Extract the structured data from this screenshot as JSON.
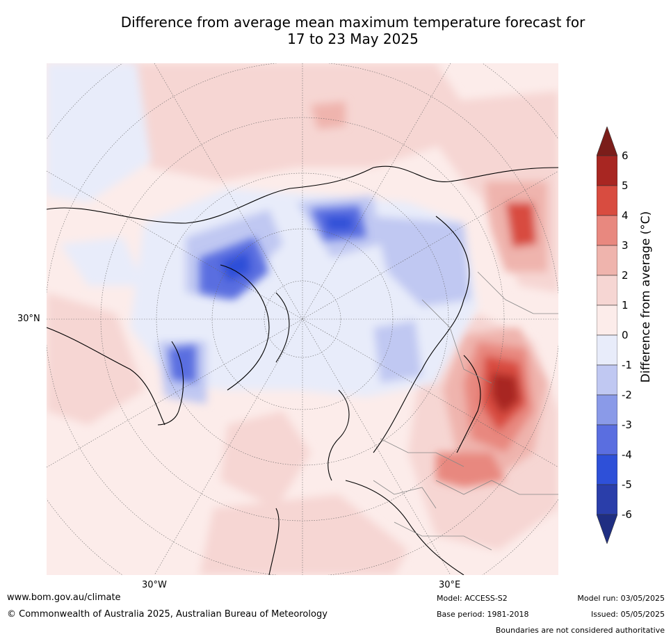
{
  "title_line1": "Difference from average mean maximum temperature forecast for",
  "title_line2": "17 to 23 May 2025",
  "map": {
    "projection": "north-polar-stereographic",
    "lat_labels": [
      "30°N"
    ],
    "lon_labels": [
      "30°W",
      "30°E"
    ]
  },
  "colorbar": {
    "label": "Difference from average (°C)",
    "ticks": [
      "6",
      "5",
      "4",
      "3",
      "2",
      "1",
      "0",
      "-1",
      "-2",
      "-3",
      "-4",
      "-5",
      "-6"
    ],
    "colors_top_to_bottom": [
      "#7b1d1a",
      "#a82622",
      "#d84c40",
      "#e8887f",
      "#efb4ad",
      "#f6d6d3",
      "#fcecea",
      "#e8ecfa",
      "#c0c8f2",
      "#8a9ae8",
      "#5a6ee0",
      "#2e50d8",
      "#2a3eaa",
      "#1f2e82"
    ]
  },
  "footer": {
    "website": "www.bom.gov.au/climate",
    "copyright": "© Commonwealth of Australia 2025, Australian Bureau of Meteorology",
    "model": "Model: ACCESS-S2",
    "base_period": "Base period: 1981-2018",
    "model_run": "Model run: 03/05/2025",
    "issued": "Issued: 05/05/2025",
    "disclaimer": "Boundaries are not considered authoritative"
  }
}
